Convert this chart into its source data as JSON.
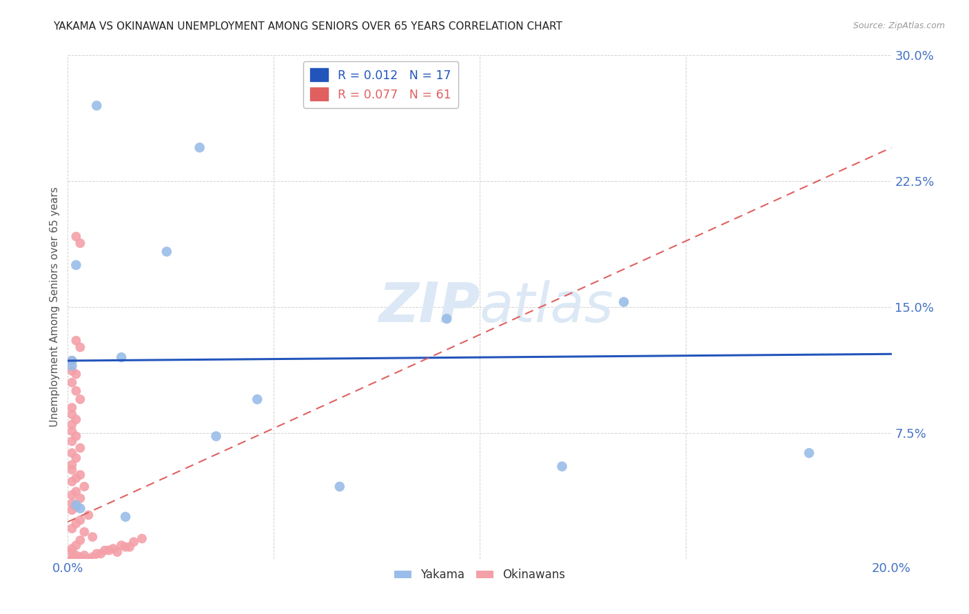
{
  "title": "YAKAMA VS OKINAWAN UNEMPLOYMENT AMONG SENIORS OVER 65 YEARS CORRELATION CHART",
  "source": "Source: ZipAtlas.com",
  "ylabel": "Unemployment Among Seniors over 65 years",
  "xlim": [
    0.0,
    0.2
  ],
  "ylim": [
    0.0,
    0.3
  ],
  "xticks": [
    0.0,
    0.05,
    0.1,
    0.15,
    0.2
  ],
  "yticks": [
    0.0,
    0.075,
    0.15,
    0.225,
    0.3
  ],
  "yakama_line_color": "#2255bb",
  "okinawan_line_color": "#e06060",
  "yakama_scatter_color": "#99bde8",
  "okinawan_scatter_color": "#f4a0a8",
  "background_color": "#ffffff",
  "grid_color": "#cccccc",
  "title_color": "#222222",
  "axis_label_color": "#555555",
  "tick_label_color": "#4472c4",
  "watermark_color": "#dce8f5",
  "legend_entries": [
    {
      "label_r": "R = 0.012",
      "label_n": "N = 17",
      "color": "#99bde8"
    },
    {
      "label_r": "R = 0.077",
      "label_n": "N = 61",
      "color": "#f4a0a8"
    }
  ],
  "yakama_scatter": [
    [
      0.007,
      0.27
    ],
    [
      0.032,
      0.245
    ],
    [
      0.002,
      0.175
    ],
    [
      0.024,
      0.183
    ],
    [
      0.013,
      0.12
    ],
    [
      0.001,
      0.118
    ],
    [
      0.135,
      0.153
    ],
    [
      0.092,
      0.143
    ],
    [
      0.001,
      0.115
    ],
    [
      0.046,
      0.095
    ],
    [
      0.18,
      0.063
    ],
    [
      0.12,
      0.055
    ],
    [
      0.002,
      0.032
    ],
    [
      0.014,
      0.025
    ],
    [
      0.036,
      0.073
    ],
    [
      0.066,
      0.043
    ],
    [
      0.003,
      0.03
    ]
  ],
  "okinawan_scatter": [
    [
      0.002,
      0.192
    ],
    [
      0.003,
      0.188
    ],
    [
      0.002,
      0.13
    ],
    [
      0.003,
      0.126
    ],
    [
      0.001,
      0.118
    ],
    [
      0.001,
      0.112
    ],
    [
      0.002,
      0.11
    ],
    [
      0.001,
      0.105
    ],
    [
      0.002,
      0.1
    ],
    [
      0.003,
      0.095
    ],
    [
      0.001,
      0.09
    ],
    [
      0.001,
      0.086
    ],
    [
      0.002,
      0.083
    ],
    [
      0.001,
      0.08
    ],
    [
      0.001,
      0.076
    ],
    [
      0.002,
      0.073
    ],
    [
      0.001,
      0.07
    ],
    [
      0.003,
      0.066
    ],
    [
      0.001,
      0.063
    ],
    [
      0.002,
      0.06
    ],
    [
      0.001,
      0.056
    ],
    [
      0.001,
      0.053
    ],
    [
      0.003,
      0.05
    ],
    [
      0.002,
      0.048
    ],
    [
      0.001,
      0.046
    ],
    [
      0.004,
      0.043
    ],
    [
      0.002,
      0.04
    ],
    [
      0.001,
      0.038
    ],
    [
      0.003,
      0.036
    ],
    [
      0.001,
      0.033
    ],
    [
      0.002,
      0.031
    ],
    [
      0.001,
      0.029
    ],
    [
      0.005,
      0.026
    ],
    [
      0.003,
      0.023
    ],
    [
      0.002,
      0.021
    ],
    [
      0.001,
      0.018
    ],
    [
      0.004,
      0.016
    ],
    [
      0.006,
      0.013
    ],
    [
      0.003,
      0.011
    ],
    [
      0.002,
      0.008
    ],
    [
      0.001,
      0.006
    ],
    [
      0.001,
      0.004
    ],
    [
      0.002,
      0.002
    ],
    [
      0.003,
      0.001
    ],
    [
      0.001,
      0.0
    ],
    [
      0.005,
      0.0
    ],
    [
      0.002,
      0.0
    ],
    [
      0.001,
      0.0
    ],
    [
      0.006,
      0.001
    ],
    [
      0.004,
      0.002
    ],
    [
      0.008,
      0.003
    ],
    [
      0.007,
      0.003
    ],
    [
      0.01,
      0.005
    ],
    [
      0.009,
      0.005
    ],
    [
      0.012,
      0.004
    ],
    [
      0.011,
      0.006
    ],
    [
      0.015,
      0.007
    ],
    [
      0.013,
      0.008
    ],
    [
      0.014,
      0.007
    ],
    [
      0.016,
      0.01
    ],
    [
      0.018,
      0.012
    ]
  ],
  "yakama_trendline_x": [
    0.0,
    0.2
  ],
  "yakama_trendline_y": [
    0.118,
    0.122
  ],
  "okinawan_trendline_x": [
    0.0,
    0.2
  ],
  "okinawan_trendline_y": [
    0.022,
    0.245
  ]
}
